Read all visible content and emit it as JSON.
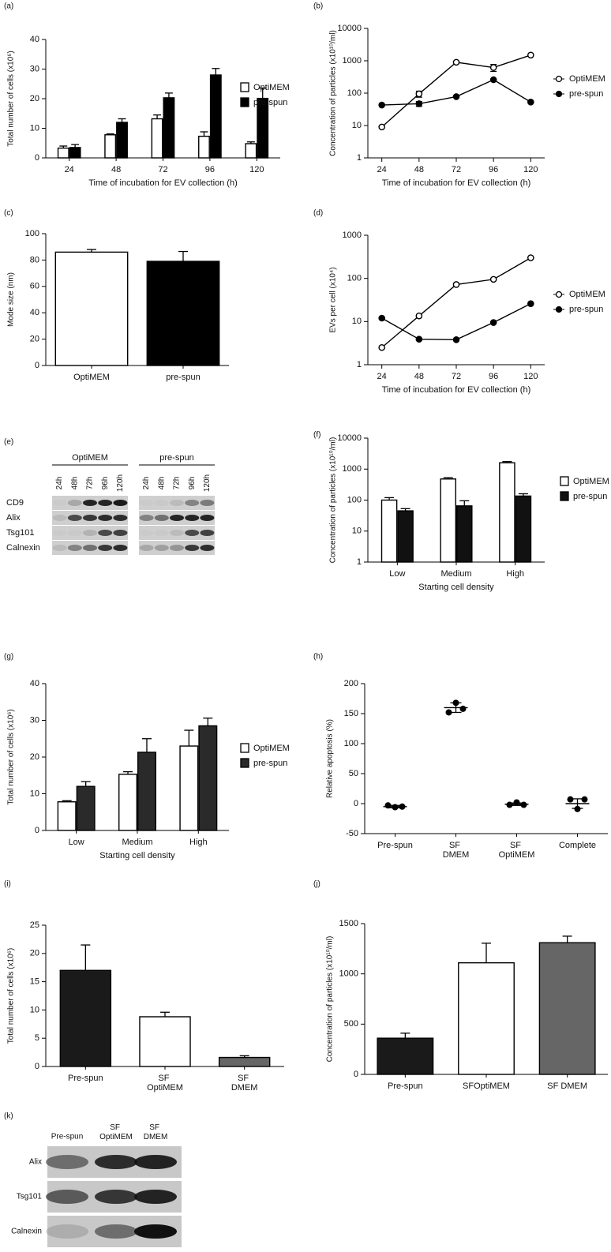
{
  "chart_data": [
    {
      "panel": "(a)",
      "type": "bar",
      "categories": [
        "24",
        "48",
        "72",
        "96",
        "120"
      ],
      "series": [
        {
          "name": "OptiMEM",
          "color": "#ffffff",
          "values": [
            3.3,
            7.8,
            13.2,
            7.3,
            4.8
          ],
          "errors": [
            0.7,
            0.3,
            1.3,
            1.5,
            0.6
          ]
        },
        {
          "name": "pre-spun",
          "color": "#000000",
          "values": [
            3.5,
            12,
            20.3,
            28,
            20.1
          ],
          "errors": [
            1,
            1.2,
            1.6,
            2.2,
            3.5
          ]
        }
      ],
      "ylim": [
        0,
        40
      ],
      "yticks": [
        0,
        10,
        20,
        30,
        40
      ],
      "y_label": "Total number of cells (x10⁶)",
      "x_label": "Time of incubation for EV collection (h)",
      "legend": "right"
    },
    {
      "panel": "(b)",
      "type": "line",
      "x": [
        24,
        48,
        72,
        96,
        120
      ],
      "xlim": [
        15,
        129
      ],
      "xticks": [
        24,
        48,
        72,
        96,
        120
      ],
      "series": [
        {
          "name": "OptiMEM",
          "color": "#000000",
          "marker_fill": "#ffffff",
          "values": [
            9,
            95,
            900,
            620,
            1500
          ],
          "errors": [
            null,
            20,
            null,
            150,
            null
          ]
        },
        {
          "name": "pre-spun",
          "color": "#000000",
          "marker_fill": "#000000",
          "values": [
            43,
            47,
            78,
            260,
            53
          ],
          "errors": [
            null,
            8,
            null,
            null,
            null
          ]
        }
      ],
      "ylim": [
        1,
        10000
      ],
      "yticks": [
        1,
        10,
        100,
        1000,
        10000
      ],
      "log_scale": true,
      "y_label": "Concentration of particles (x10¹⁰/ml)",
      "x_label": "Time of incubation for EV collection (h)",
      "legend": "right"
    },
    {
      "panel": "(c)",
      "type": "bar",
      "categories": [
        "OptiMEM",
        "pre-spun"
      ],
      "values": [
        86,
        79
      ],
      "errors": [
        2,
        7.5
      ],
      "colors": [
        "#ffffff",
        "#000000"
      ],
      "ylim": [
        0,
        100
      ],
      "yticks": [
        0,
        20,
        40,
        60,
        80,
        100
      ],
      "y_label": "Mode size (nm)"
    },
    {
      "panel": "(d)",
      "type": "line",
      "x": [
        24,
        48,
        72,
        96,
        120
      ],
      "xlim": [
        15,
        129
      ],
      "xticks": [
        24,
        48,
        72,
        96,
        120
      ],
      "series": [
        {
          "name": "OptiMEM",
          "color": "#000000",
          "marker_fill": "#ffffff",
          "values": [
            2.5,
            13.5,
            72,
            95,
            300
          ],
          "errors": [
            null,
            null,
            null,
            null,
            null
          ]
        },
        {
          "name": "pre-spun",
          "color": "#000000",
          "marker_fill": "#000000",
          "values": [
            12,
            3.9,
            3.8,
            9.5,
            26
          ],
          "errors": [
            null,
            null,
            null,
            null,
            null
          ]
        }
      ],
      "ylim": [
        1,
        1000
      ],
      "yticks": [
        1,
        10,
        100,
        1000
      ],
      "log_scale": true,
      "y_label": "EVs per cell (x10⁴)",
      "x_label": "Time of incubation for EV collection (h)",
      "legend": "right"
    },
    {
      "panel": "(f)",
      "type": "bar",
      "categories": [
        "Low",
        "Medium",
        "High"
      ],
      "series": [
        {
          "name": "OptiMEM",
          "color": "#ffffff",
          "values": [
            100,
            480,
            1600
          ],
          "errors": [
            20,
            50,
            150
          ]
        },
        {
          "name": "pre-spun",
          "color": "#111111",
          "values": [
            45,
            65,
            135
          ],
          "errors": [
            8,
            30,
            25
          ]
        }
      ],
      "ylim": [
        1,
        10000
      ],
      "yticks": [
        1,
        10,
        100,
        1000,
        10000
      ],
      "log_scale": true,
      "y_label": "Concentration of particles (x10¹⁰/ml)",
      "x_label": "Starting cell density",
      "legend": "right"
    },
    {
      "panel": "(g)",
      "type": "bar",
      "categories": [
        "Low",
        "Medium",
        "High"
      ],
      "series": [
        {
          "name": "OptiMEM",
          "color": "#ffffff",
          "values": [
            7.8,
            15.3,
            23
          ],
          "errors": [
            0.3,
            0.7,
            4.3
          ]
        },
        {
          "name": "pre-spun",
          "color": "#2a2a2a",
          "values": [
            12,
            21.3,
            28.5
          ],
          "errors": [
            1.3,
            3.7,
            2.1
          ]
        }
      ],
      "ylim": [
        0,
        40
      ],
      "yticks": [
        0,
        10,
        20,
        30,
        40
      ],
      "y_label": "Total number of cells (x10⁶)",
      "x_label": "Starting cell density",
      "legend": "right"
    },
    {
      "panel": "(h)",
      "type": "scatter",
      "categories": [
        "Pre-spun",
        "SF DMEM",
        "SF OptiMEM",
        "Complete"
      ],
      "wrap_labels": true,
      "points": [
        [
          -3,
          -6,
          -5
        ],
        [
          152,
          168,
          158
        ],
        [
          -2,
          2,
          -2
        ],
        [
          7,
          -9,
          7
        ]
      ],
      "means": [
        -5,
        160,
        -1,
        0
      ],
      "errors": [
        2,
        8,
        2,
        8
      ],
      "ylim": [
        -50,
        200
      ],
      "yticks": [
        -50,
        0,
        50,
        100,
        150,
        200
      ],
      "y_label": "Relative apoptosis (%)"
    },
    {
      "panel": "(i)",
      "type": "bar",
      "categories": [
        "Pre-spun",
        "SF OptiMEM",
        "SF DMEM"
      ],
      "wrap_labels": true,
      "values": [
        17,
        8.8,
        1.6
      ],
      "errors": [
        4.5,
        0.8,
        0.3
      ],
      "colors": [
        "#1a1a1a",
        "#ffffff",
        "#666666"
      ],
      "ylim": [
        0,
        25
      ],
      "yticks": [
        0,
        5,
        10,
        15,
        20,
        25
      ],
      "y_label": "Total number of cells (x10⁶)"
    },
    {
      "panel": "(j)",
      "type": "bar",
      "categories": [
        "Pre-spun",
        "SFOptiMEM",
        "SF DMEM"
      ],
      "values": [
        360,
        1110,
        1310
      ],
      "errors": [
        50,
        195,
        65
      ],
      "colors": [
        "#1a1a1a",
        "#ffffff",
        "#666666"
      ],
      "ylim": [
        0,
        1500
      ],
      "yticks": [
        0,
        500,
        1000,
        1500
      ],
      "y_label": "Concentration of particles (x10¹⁰/ml)"
    }
  ],
  "blots": [
    {
      "panel": "(e)",
      "groups": [
        {
          "name": "OptiMEM",
          "lanes": [
            "24h",
            "48h",
            "72h",
            "96h",
            "120h"
          ]
        },
        {
          "name": "pre-spun",
          "lanes": [
            "24h",
            "48h",
            "72h",
            "96h",
            "120h"
          ]
        }
      ],
      "rows": [
        "CD9",
        "Alix",
        "Tsg101",
        "Calnexin"
      ]
    },
    {
      "panel": "(k)",
      "lanes": [
        "Pre-spun",
        "SF OptiMEM",
        "SF DMEM"
      ],
      "rows": [
        "Alix",
        "Tsg101",
        "Calnexin"
      ]
    }
  ]
}
